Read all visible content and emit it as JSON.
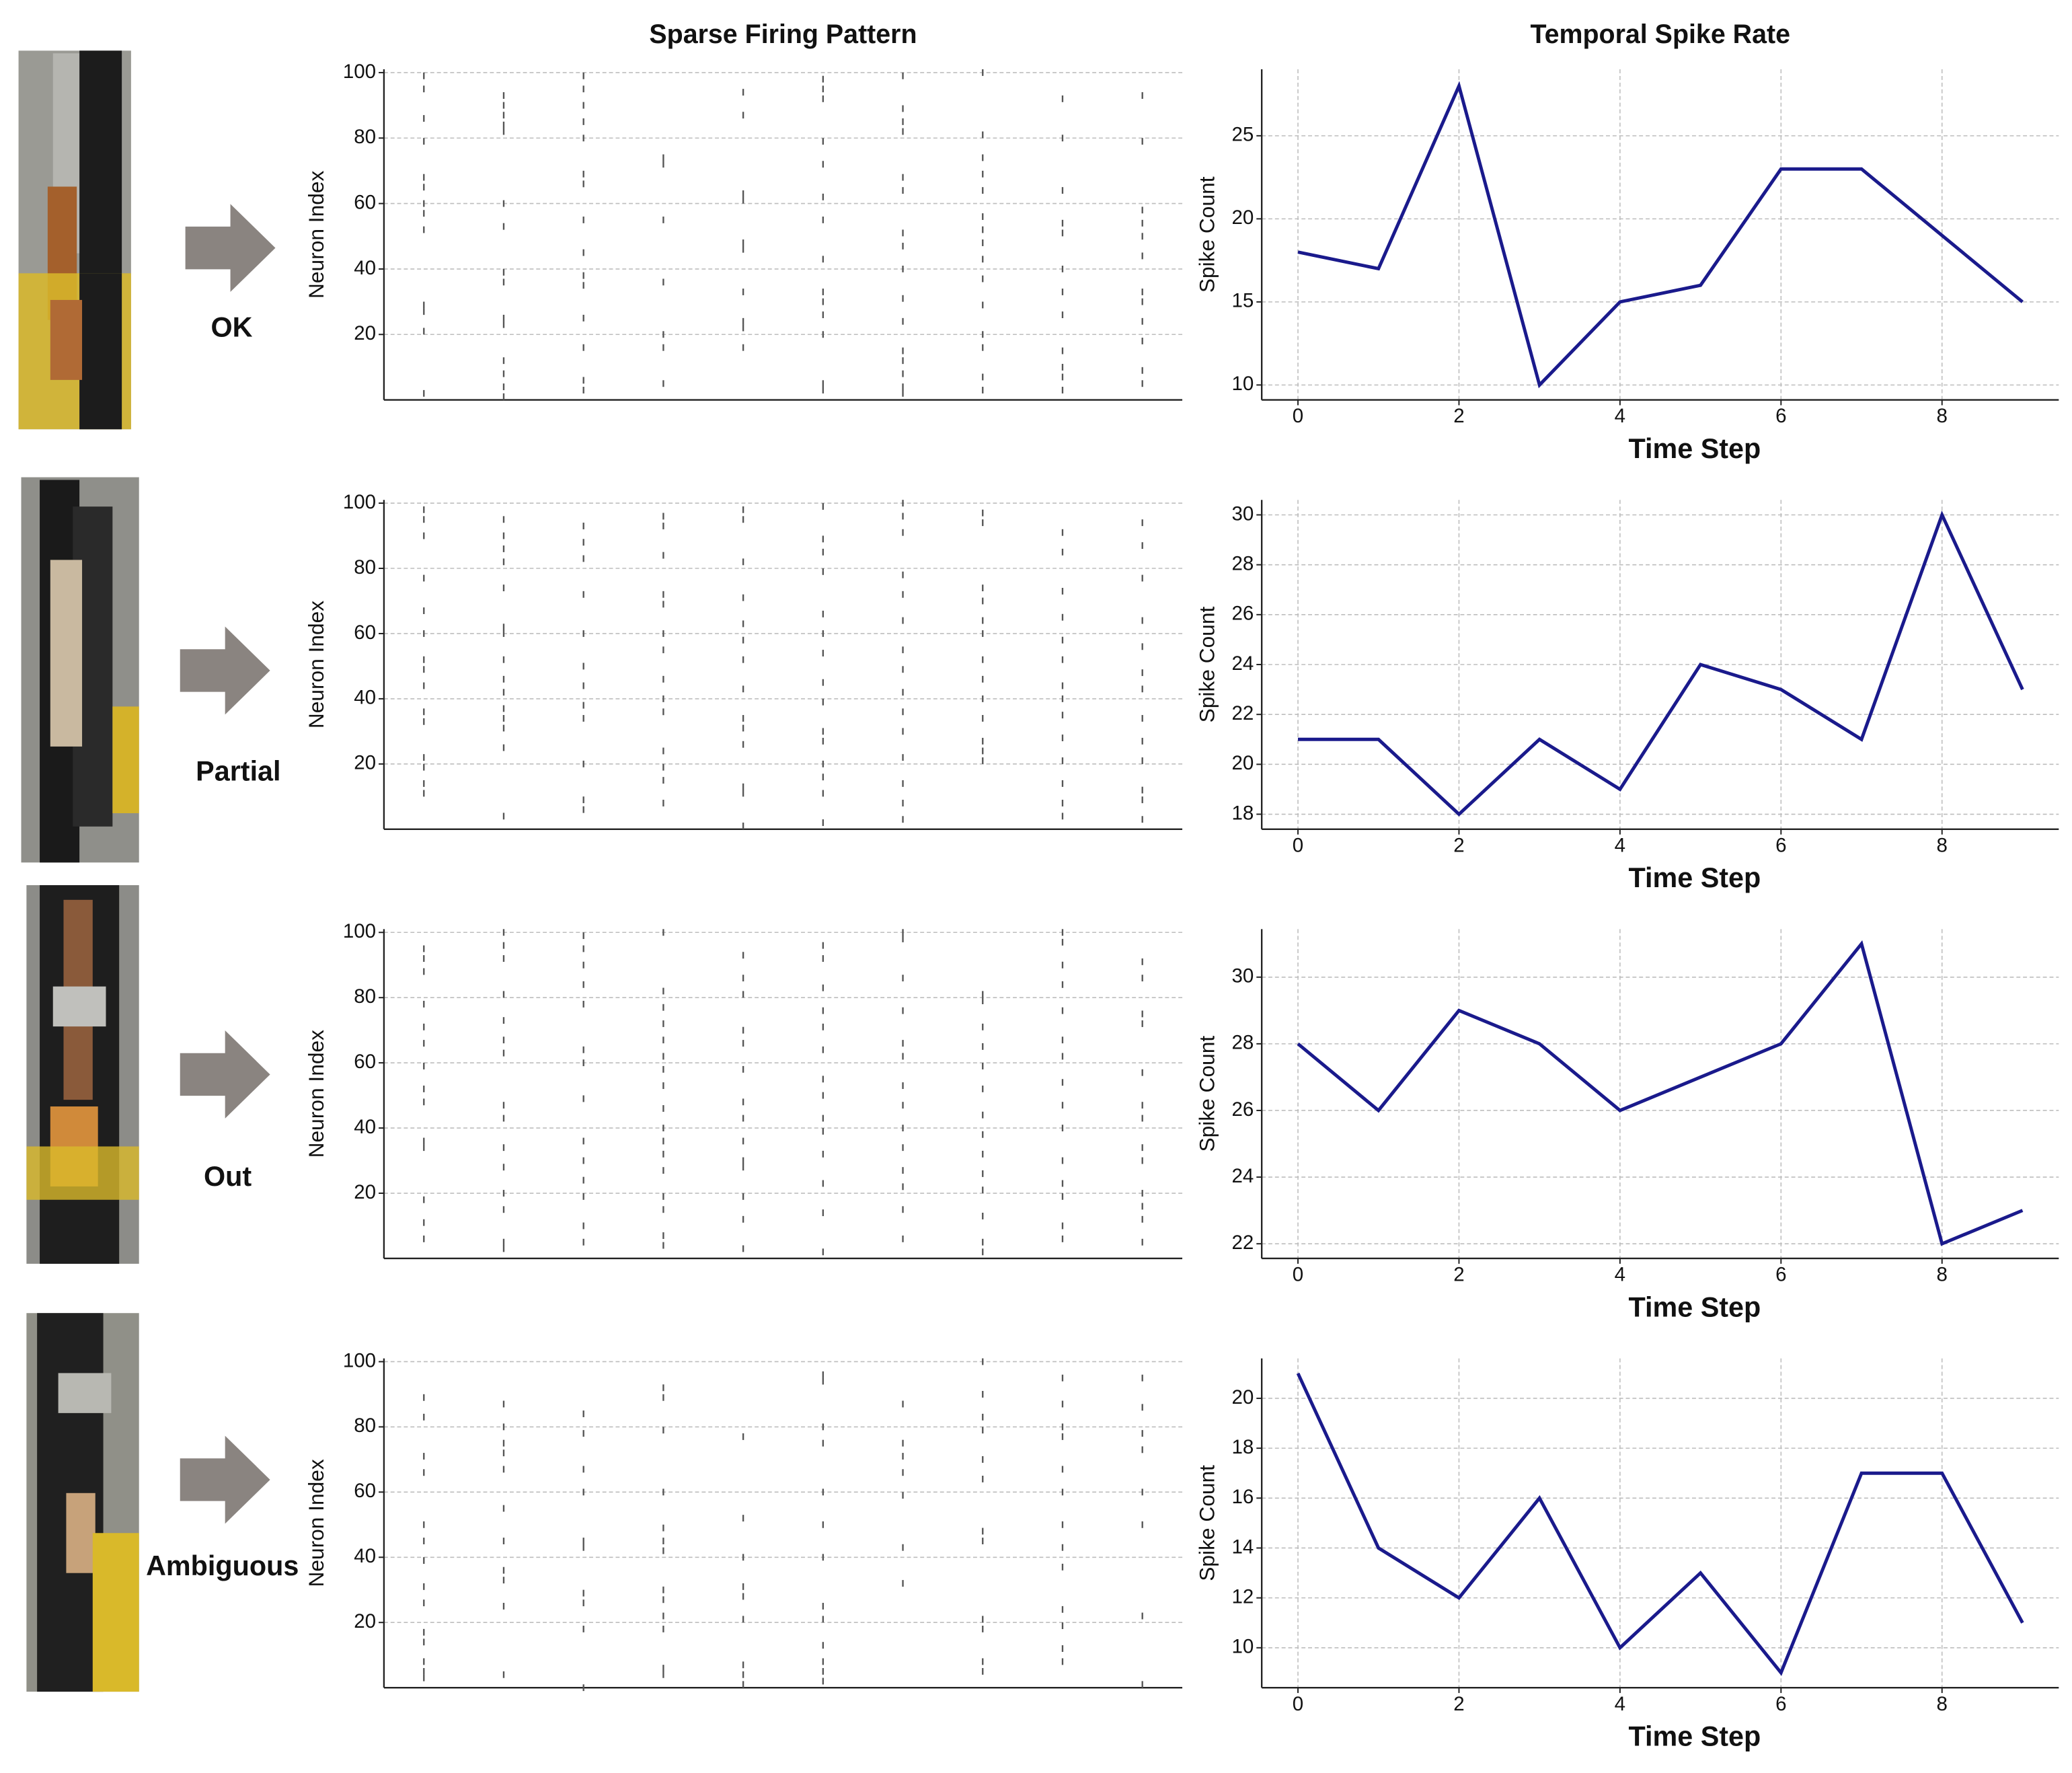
{
  "row_labels": [
    "OK",
    "Partial",
    "Out",
    "Ambiguous"
  ],
  "chart_data": [
    {
      "type": "raster",
      "title": "Sparse Firing Pattern",
      "y_label": "Neuron Index",
      "x": [
        0,
        1,
        2,
        3,
        4,
        5,
        6,
        7,
        8,
        9
      ],
      "xlim": [
        -0.5,
        9.5
      ],
      "ylim": [
        0,
        101
      ],
      "yticks": [
        20,
        40,
        60,
        80,
        100
      ],
      "grid": true,
      "color": "#555555",
      "spikes": [
        [
          99,
          95,
          86,
          79,
          68,
          65,
          60,
          57,
          52,
          29,
          27,
          21,
          2
        ],
        [
          93,
          90,
          87,
          84,
          82,
          60,
          53,
          39,
          36,
          25,
          23,
          12,
          8,
          4,
          1
        ],
        [
          99,
          95,
          90,
          85,
          80,
          69,
          66,
          55,
          45,
          38,
          35,
          25,
          16,
          6,
          3
        ],
        [
          74,
          72,
          55,
          36,
          20,
          16,
          5
        ],
        [
          94,
          87,
          63,
          61,
          48,
          46,
          33,
          24,
          22,
          16
        ],
        [
          98,
          95,
          92,
          79,
          72,
          62,
          55,
          43,
          33,
          30,
          26,
          20,
          5,
          3
        ],
        [
          99,
          89,
          85,
          82,
          68,
          64,
          51,
          47,
          40,
          31,
          24,
          15,
          12,
          8,
          4,
          2
        ],
        [
          100,
          81,
          74,
          69,
          64,
          56,
          52,
          48,
          43,
          37,
          29,
          20,
          16,
          7,
          3
        ],
        [
          92,
          80,
          64,
          54,
          51,
          40,
          33,
          26,
          15,
          10,
          7,
          3
        ],
        [
          93,
          79,
          58,
          54,
          50,
          44,
          33,
          30,
          24,
          18,
          9,
          5
        ]
      ]
    },
    {
      "type": "line",
      "title": "Temporal Spike Rate",
      "y_label": "Spike Count",
      "x_label": "Time Step",
      "x": [
        0,
        1,
        2,
        3,
        4,
        5,
        6,
        7,
        8,
        9
      ],
      "values": [
        18,
        17,
        28,
        10,
        15,
        16,
        23,
        23,
        19,
        15
      ],
      "color": "#1a1a8c",
      "xlim": [
        -0.45,
        9.45
      ],
      "xticks": [
        0,
        2,
        4,
        6,
        8
      ],
      "ylim": [
        9.1,
        29
      ],
      "yticks": [
        10,
        15,
        20,
        25
      ],
      "grid": true
    },
    {
      "type": "raster",
      "y_label": "Neuron Index",
      "x": [
        0,
        1,
        2,
        3,
        4,
        5,
        6,
        7,
        8,
        9
      ],
      "xlim": [
        -0.5,
        9.5
      ],
      "ylim": [
        0,
        101
      ],
      "yticks": [
        20,
        40,
        60,
        80,
        100
      ],
      "grid": true,
      "color": "#555555",
      "spikes": [
        [
          98,
          95,
          90,
          77,
          67,
          60,
          52,
          49,
          44,
          36,
          33,
          22,
          19,
          14,
          11
        ],
        [
          95,
          90,
          86,
          82,
          74,
          62,
          60,
          52,
          46,
          42,
          37,
          34,
          31,
          25,
          4
        ],
        [
          93,
          88,
          83,
          72,
          60,
          50,
          44,
          38,
          34,
          20,
          9,
          6
        ],
        [
          96,
          93,
          84,
          72,
          69,
          60,
          55,
          46,
          40,
          36,
          24,
          19,
          15,
          8
        ],
        [
          98,
          95,
          82,
          71,
          63,
          58,
          52,
          43,
          34,
          31,
          26,
          13,
          11,
          1
        ],
        [
          99,
          89,
          85,
          79,
          66,
          60,
          54,
          45,
          39,
          30,
          27,
          20,
          16,
          11,
          2
        ],
        [
          100,
          96,
          91,
          78,
          72,
          64,
          55,
          49,
          42,
          36,
          30,
          22,
          14,
          8,
          3
        ],
        [
          97,
          94,
          74,
          70,
          64,
          60,
          52,
          46,
          40,
          34,
          27,
          24,
          21
        ],
        [
          91,
          85,
          73,
          65,
          58,
          52,
          44,
          40,
          35,
          28,
          21,
          14,
          8,
          4
        ],
        [
          94,
          87,
          77,
          64,
          56,
          48,
          43,
          34,
          27,
          21,
          12,
          9,
          3
        ]
      ]
    },
    {
      "type": "line",
      "y_label": "Spike Count",
      "x_label": "Time Step",
      "x": [
        0,
        1,
        2,
        3,
        4,
        5,
        6,
        7,
        8,
        9
      ],
      "values": [
        21,
        21,
        18,
        21,
        19,
        24,
        23,
        21,
        30,
        23
      ],
      "color": "#1a1a8c",
      "xlim": [
        -0.45,
        9.45
      ],
      "xticks": [
        0,
        2,
        4,
        6,
        8
      ],
      "ylim": [
        17.4,
        30.6
      ],
      "yticks": [
        18,
        20,
        22,
        24,
        26,
        28,
        30
      ],
      "grid": true
    },
    {
      "type": "raster",
      "y_label": "Neuron Index",
      "x": [
        0,
        1,
        2,
        3,
        4,
        5,
        6,
        7,
        8,
        9
      ],
      "xlim": [
        -0.5,
        9.5
      ],
      "ylim": [
        0,
        101
      ],
      "yticks": [
        20,
        40,
        60,
        80,
        100
      ],
      "grid": true,
      "color": "#555555",
      "spikes": [
        [
          95,
          92,
          88,
          78,
          71,
          66,
          59,
          52,
          48,
          36,
          34,
          18,
          11,
          6
        ],
        [
          100,
          96,
          92,
          81,
          73,
          67,
          63,
          47,
          43,
          34,
          28,
          20,
          15,
          5,
          3
        ],
        [
          99,
          95,
          90,
          84,
          78,
          64,
          60,
          49,
          36,
          30,
          24,
          19,
          10,
          5
        ],
        [
          100,
          82,
          77,
          72,
          67,
          62,
          58,
          53,
          46,
          40,
          36,
          32,
          27,
          19,
          15,
          7,
          4
        ],
        [
          93,
          86,
          81,
          70,
          66,
          58,
          48,
          43,
          36,
          30,
          28,
          19,
          12,
          3
        ],
        [
          96,
          92,
          83,
          76,
          71,
          64,
          55,
          50,
          43,
          39,
          32,
          23,
          14,
          2
        ],
        [
          100,
          98,
          86,
          76,
          66,
          62,
          53,
          47,
          40,
          34,
          27,
          22,
          15,
          6
        ],
        [
          81,
          79,
          71,
          65,
          59,
          52,
          44,
          38,
          32,
          26,
          21,
          13,
          5,
          2
        ],
        [
          100,
          97,
          90,
          84,
          76,
          67,
          62,
          54,
          47,
          40,
          30,
          23,
          19,
          10,
          6
        ],
        [
          91,
          86,
          75,
          72,
          57,
          47,
          43,
          34,
          30,
          20,
          16,
          12,
          5
        ]
      ]
    },
    {
      "type": "line",
      "y_label": "Spike Count",
      "x_label": "Time Step",
      "x": [
        0,
        1,
        2,
        3,
        4,
        5,
        6,
        7,
        8,
        9
      ],
      "values": [
        28,
        26,
        29,
        28,
        26,
        27,
        28,
        31,
        22,
        23
      ],
      "color": "#1a1a8c",
      "xlim": [
        -0.45,
        9.45
      ],
      "xticks": [
        0,
        2,
        4,
        6,
        8
      ],
      "ylim": [
        21.56,
        31.44
      ],
      "yticks": [
        22,
        24,
        26,
        28,
        30
      ],
      "grid": true
    },
    {
      "type": "raster",
      "y_label": "Neuron Index",
      "x": [
        0,
        1,
        2,
        3,
        4,
        5,
        6,
        7,
        8,
        9
      ],
      "xlim": [
        -0.5,
        9.5
      ],
      "ylim": [
        0,
        101
      ],
      "yticks": [
        20,
        40,
        60,
        80,
        100
      ],
      "grid": true,
      "color": "#555555",
      "spikes": [
        [
          89,
          83,
          71,
          66,
          50,
          45,
          39,
          31,
          26,
          17,
          14,
          8,
          5,
          3
        ],
        [
          87,
          80,
          75,
          72,
          67,
          55,
          45,
          36,
          33,
          25,
          4
        ],
        [
          84,
          78,
          67,
          60,
          45,
          43,
          29,
          26,
          18,
          0
        ],
        [
          92,
          89,
          79,
          60,
          49,
          45,
          42,
          30,
          27,
          22,
          18,
          6,
          4
        ],
        [
          77,
          52,
          40,
          31,
          28,
          21,
          7,
          4,
          1
        ],
        [
          96,
          94,
          80,
          75,
          60,
          50,
          40,
          25,
          21,
          13,
          8,
          5,
          2
        ],
        [
          87,
          75,
          71,
          66,
          59,
          43,
          32
        ],
        [
          100,
          90,
          83,
          79,
          70,
          64,
          48,
          45,
          21,
          18,
          8,
          5
        ],
        [
          95,
          87,
          80,
          77,
          67,
          60,
          50,
          43,
          37,
          24,
          19,
          12,
          8
        ],
        [
          95,
          86,
          78,
          73,
          60,
          50,
          22,
          1
        ]
      ]
    },
    {
      "type": "line",
      "y_label": "Spike Count",
      "x_label": "Time Step",
      "x": [
        0,
        1,
        2,
        3,
        4,
        5,
        6,
        7,
        8,
        9
      ],
      "values": [
        21,
        14,
        12,
        16,
        10,
        13,
        9,
        17,
        17,
        11
      ],
      "color": "#1a1a8c",
      "xlim": [
        -0.45,
        9.45
      ],
      "xticks": [
        0,
        2,
        4,
        6,
        8
      ],
      "ylim": [
        8.4,
        21.6
      ],
      "yticks": [
        10,
        12,
        14,
        16,
        18,
        20
      ],
      "grid": true
    }
  ]
}
